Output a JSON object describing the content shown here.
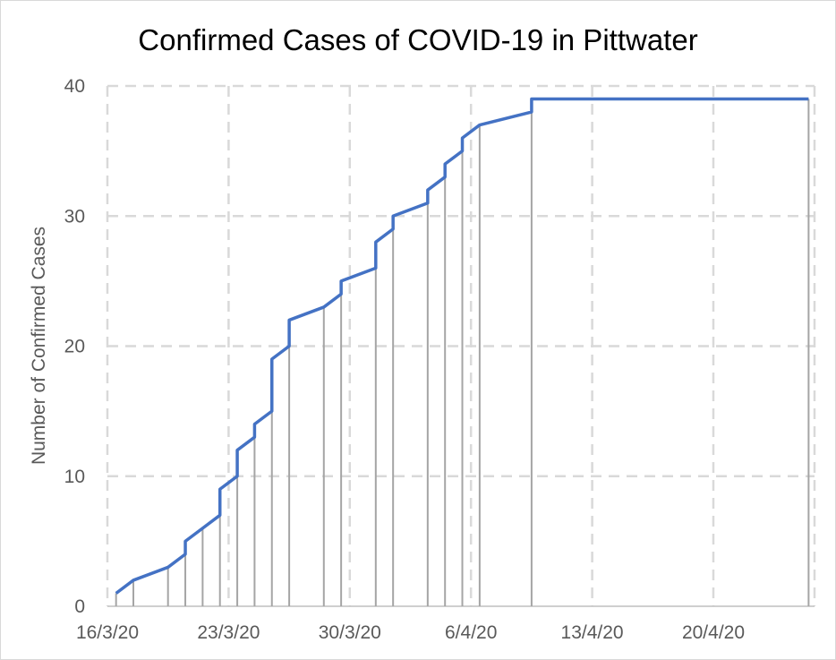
{
  "chart_data": {
    "type": "line",
    "title": "Confirmed Cases of COVID-19 in Pittwater",
    "xlabel": "",
    "ylabel": "Number of Confirmed Cases",
    "x_unit": "days since 16/3/20",
    "xlim": [
      0,
      40.8
    ],
    "ylim": [
      0,
      40
    ],
    "grid": true,
    "legend": "none",
    "x_ticks": [
      {
        "day": 0,
        "label": "16/3/20"
      },
      {
        "day": 7,
        "label": "23/3/20"
      },
      {
        "day": 14,
        "label": "30/3/20"
      },
      {
        "day": 21,
        "label": "6/4/20"
      },
      {
        "day": 28,
        "label": "13/4/20"
      },
      {
        "day": 35,
        "label": "20/4/20"
      }
    ],
    "y_ticks": [
      {
        "value": 0,
        "label": "0"
      },
      {
        "value": 10,
        "label": "10"
      },
      {
        "value": 20,
        "label": "20"
      },
      {
        "value": 30,
        "label": "30"
      },
      {
        "value": 40,
        "label": "40"
      }
    ],
    "series": [
      {
        "name": "Confirmed cases",
        "color": "#4472c4",
        "drop_line_color": "#a5a5a5",
        "points": [
          {
            "day": 0.5,
            "from": 1,
            "to": 1
          },
          {
            "day": 1.5,
            "from": 2,
            "to": 2
          },
          {
            "day": 3.5,
            "from": 3,
            "to": 3
          },
          {
            "day": 4.5,
            "from": 4,
            "to": 5
          },
          {
            "day": 5.5,
            "from": 6,
            "to": 6
          },
          {
            "day": 6.5,
            "from": 7,
            "to": 9
          },
          {
            "day": 7.5,
            "from": 10,
            "to": 12
          },
          {
            "day": 8.5,
            "from": 13,
            "to": 14
          },
          {
            "day": 9.5,
            "from": 15,
            "to": 19
          },
          {
            "day": 10.5,
            "from": 20,
            "to": 22
          },
          {
            "day": 12.5,
            "from": 23,
            "to": 23
          },
          {
            "day": 13.5,
            "from": 24,
            "to": 25
          },
          {
            "day": 15.5,
            "from": 26,
            "to": 28
          },
          {
            "day": 16.5,
            "from": 29,
            "to": 30
          },
          {
            "day": 18.5,
            "from": 31,
            "to": 32
          },
          {
            "day": 19.5,
            "from": 33,
            "to": 34
          },
          {
            "day": 20.5,
            "from": 35,
            "to": 36
          },
          {
            "day": 21.5,
            "from": 37,
            "to": 37
          },
          {
            "day": 24.5,
            "from": 38,
            "to": 39
          },
          {
            "day": 40.5,
            "from": 39,
            "to": 39
          }
        ]
      }
    ]
  }
}
